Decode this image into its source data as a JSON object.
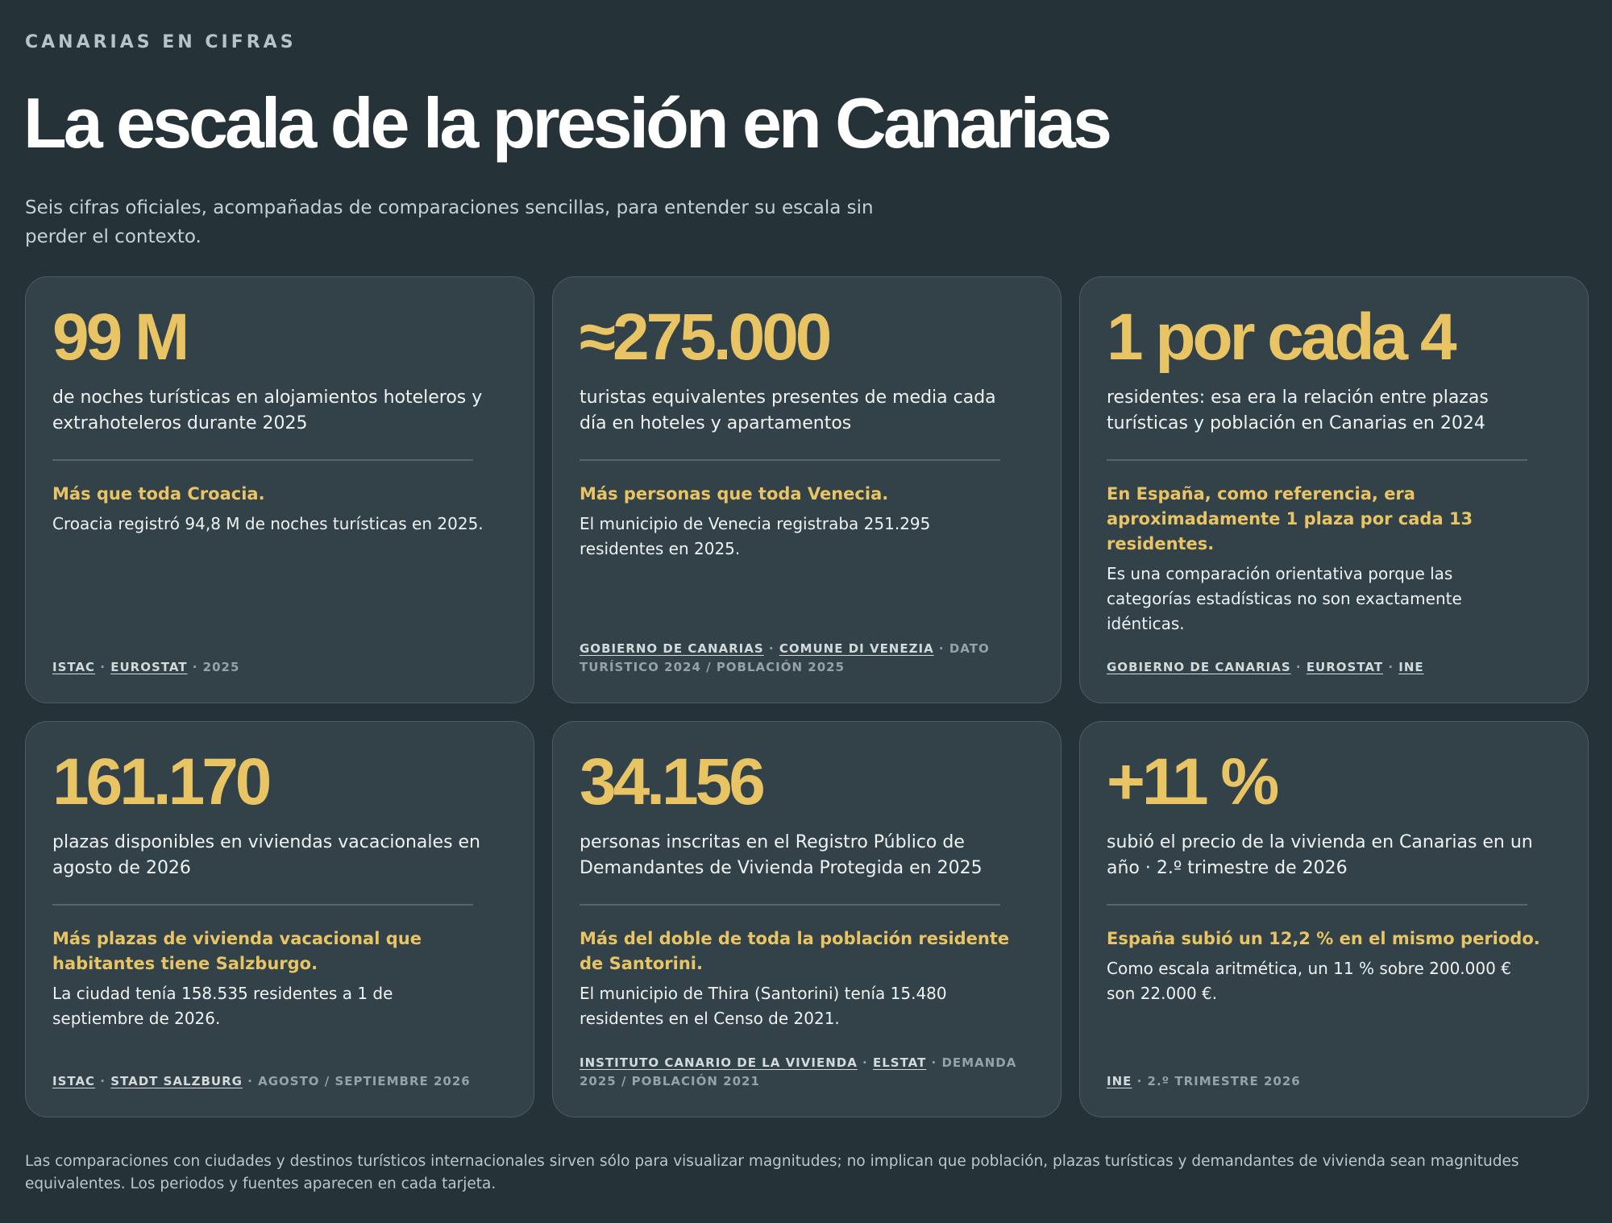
{
  "header": {
    "kicker": "CANARIAS EN CIFRAS",
    "title": "La escala de la presión en Canarias",
    "subtitle": "Seis cifras oficiales, acompañadas de comparaciones sencillas, para entender su escala sin perder el contexto."
  },
  "cards": [
    {
      "value": "99 M",
      "description": "de noches turísticas en alojamientos hoteleros y extrahoteleros durante 2025",
      "highlight": "Más que toda Croacia.",
      "note": "Croacia registró 94,8 M de noches turísticas en 2025.",
      "sources": [
        {
          "text": "ISTAC",
          "link": true
        },
        {
          "text": " · ",
          "link": false
        },
        {
          "text": "EUROSTAT",
          "link": true
        },
        {
          "text": " · 2025",
          "link": false
        }
      ]
    },
    {
      "value": "≈275.000",
      "description": "turistas equivalentes presentes de media cada día en hoteles y apartamentos",
      "highlight": "Más personas que toda Venecia.",
      "note": "El municipio de Venecia registraba 251.295 residentes en 2025.",
      "sources": [
        {
          "text": "GOBIERNO DE CANARIAS",
          "link": true
        },
        {
          "text": " · ",
          "link": false
        },
        {
          "text": "COMUNE DI VENEZIA",
          "link": true
        },
        {
          "text": " · DATO TURÍSTICO 2024 / POBLACIÓN 2025",
          "link": false
        }
      ]
    },
    {
      "value": "1 por cada 4",
      "description": "residentes: esa era la relación entre plazas turísticas y población en Canarias en 2024",
      "highlight": "En España, como referencia, era aproximadamente 1 plaza por cada 13 residentes.",
      "note": "Es una comparación orientativa porque las categorías estadísticas no son exactamente idénticas.",
      "sources": [
        {
          "text": "GOBIERNO DE CANARIAS",
          "link": true
        },
        {
          "text": " · ",
          "link": false
        },
        {
          "text": "EUROSTAT",
          "link": true
        },
        {
          "text": " · ",
          "link": false
        },
        {
          "text": "INE",
          "link": true
        }
      ]
    },
    {
      "value": "161.170",
      "description": "plazas disponibles en viviendas vacacionales en agosto de 2026",
      "highlight": "Más plazas de vivienda vacacional que habitantes tiene Salzburgo.",
      "note": "La ciudad tenía 158.535 residentes a 1 de septiembre de 2026.",
      "sources": [
        {
          "text": "ISTAC",
          "link": true
        },
        {
          "text": " · ",
          "link": false
        },
        {
          "text": "STADT SALZBURG",
          "link": true
        },
        {
          "text": " · AGOSTO / SEPTIEMBRE 2026",
          "link": false
        }
      ]
    },
    {
      "value": "34.156",
      "description": "personas inscritas en el Registro Público de Demandantes de Vivienda Protegida en 2025",
      "highlight": "Más del doble de toda la población residente de Santorini.",
      "note": "El municipio de Thira (Santorini) tenía 15.480 residentes en el Censo de 2021.",
      "sources": [
        {
          "text": "INSTITUTO CANARIO DE LA VIVIENDA",
          "link": true
        },
        {
          "text": " · ",
          "link": false
        },
        {
          "text": "ELSTAT",
          "link": true
        },
        {
          "text": " · DEMANDA 2025 / POBLACIÓN 2021",
          "link": false
        }
      ]
    },
    {
      "value": "+11 %",
      "description": "subió el precio de la vivienda en Canarias en un año · 2.º trimestre de 2026",
      "highlight": "España subió un 12,2 % en el mismo periodo.",
      "note": "Como escala aritmética, un 11 % sobre 200.000 € son 22.000 €.",
      "sources": [
        {
          "text": "INE",
          "link": true
        },
        {
          "text": " · 2.º TRIMESTRE 2026",
          "link": false
        }
      ]
    }
  ],
  "footer": {
    "text": "Las comparaciones con ciudades y destinos turísticos internacionales sirven sólo para visualizar magnitudes; no implican que población, plazas turísticas y demandantes de vivienda sean magnitudes equivalentes. Los periodos y fuentes aparecen en cada tarjeta."
  }
}
